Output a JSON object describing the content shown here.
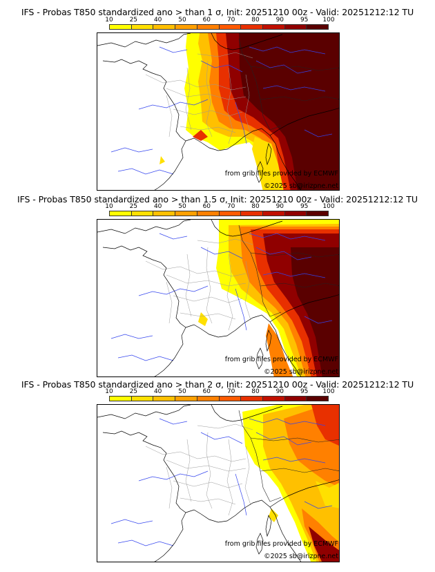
{
  "colorbar": {
    "ticks": [
      "10",
      "25",
      "40",
      "50",
      "60",
      "70",
      "80",
      "90",
      "95",
      "100"
    ],
    "colors": [
      "#ffff00",
      "#ffe000",
      "#ffc000",
      "#ffa000",
      "#ff8000",
      "#ff5a00",
      "#e83000",
      "#c01000",
      "#900000",
      "#5a0000"
    ]
  },
  "panels": [
    {
      "title": "IFS - Probas T850  standardized ano > than 1 σ, Init: 20251210 00z - Valid: 20251212:12 TU",
      "credit": "from grib files provided by ECMWF",
      "copyright": "©2025 sb@irizpne.net"
    },
    {
      "title": "IFS - Probas T850  standardized ano > than 1.5 σ, Init: 20251210 00z - Valid: 20251212:12 TU",
      "credit": "from grib files provided by ECMWF",
      "copyright": "©2025 sb@irizpne.net"
    },
    {
      "title": "IFS - Probas T850  standardized ano > than 2 σ, Init: 20251210 00z - Valid: 20251212:12 TU",
      "credit": "from grib files provided by ECMWF",
      "copyright": "©2025 sb@irizpne.net"
    }
  ]
}
